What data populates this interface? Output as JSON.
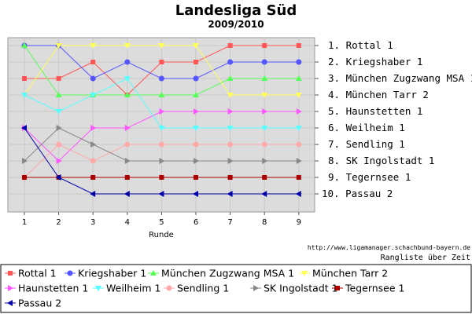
{
  "title": "Landesliga Süd",
  "subtitle": "2009/2010",
  "source_url": "http://www.ligamanager.schachbund-bayern.de",
  "caption": "Rangliste über Zeit",
  "chart_data": {
    "type": "line",
    "title": "Landesliga Süd",
    "subtitle": "2009/2010",
    "xlabel": "Runde",
    "ylabel": "",
    "x": [
      1,
      2,
      3,
      4,
      5,
      6,
      7,
      8,
      9
    ],
    "xlim": [
      1,
      9
    ],
    "ylim": [
      1,
      10
    ],
    "y_inverted": true,
    "grid": true,
    "legend_position": "bottom",
    "rank_labels": [
      "1. Rottal 1",
      "2. Kriegshaber 1",
      "3. München Zugzwang MSA 1",
      "4. München Tarr 2",
      "5. Haunstetten 1",
      "6. Weilheim 1",
      "7. Sendling 1",
      "8. SK Ingolstadt 1",
      "9. Tegernsee 1",
      "10. Passau 2"
    ],
    "series": [
      {
        "name": "Rottal 1",
        "color": "#ff5555",
        "marker": "square",
        "values": [
          3,
          3,
          2,
          4,
          2,
          2,
          1,
          1,
          1
        ]
      },
      {
        "name": "Kriegshaber 1",
        "color": "#5555ff",
        "marker": "circle",
        "values": [
          1,
          1,
          3,
          2,
          3,
          3,
          2,
          2,
          2
        ]
      },
      {
        "name": "München Zugzwang MSA 1",
        "color": "#55ff55",
        "marker": "triangle-up",
        "values": [
          1,
          4,
          4,
          4,
          4,
          4,
          3,
          3,
          3
        ]
      },
      {
        "name": "München Tarr 2",
        "color": "#ffff55",
        "marker": "triangle-down",
        "values": [
          4,
          1,
          1,
          1,
          1,
          1,
          4,
          4,
          4
        ]
      },
      {
        "name": "Haunstetten 1",
        "color": "#ff55ff",
        "marker": "triangle-right",
        "values": [
          6,
          8,
          6,
          6,
          5,
          5,
          5,
          5,
          5
        ]
      },
      {
        "name": "Weilheim 1",
        "color": "#55ffff",
        "marker": "triangle-down",
        "values": [
          4,
          5,
          4,
          3,
          6,
          6,
          6,
          6,
          6
        ]
      },
      {
        "name": "Sendling 1",
        "color": "#ffaaaa",
        "marker": "circle",
        "values": [
          9,
          7,
          8,
          7,
          7,
          7,
          7,
          7,
          7
        ]
      },
      {
        "name": "SK Ingolstadt 1",
        "color": "#888888",
        "marker": "triangle-right",
        "values": [
          8,
          6,
          7,
          8,
          8,
          8,
          8,
          8,
          8
        ]
      },
      {
        "name": "Tegernsee 1",
        "color": "#aa0000",
        "marker": "square",
        "values": [
          9,
          9,
          9,
          9,
          9,
          9,
          9,
          9,
          9
        ]
      },
      {
        "name": "Passau 2",
        "color": "#0000aa",
        "marker": "triangle-left",
        "values": [
          6,
          9,
          10,
          10,
          10,
          10,
          10,
          10,
          10
        ]
      }
    ]
  }
}
